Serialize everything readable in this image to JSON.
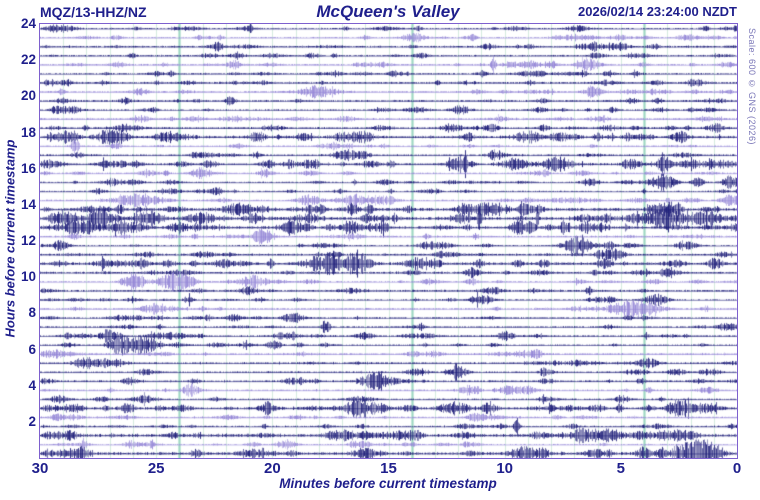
{
  "header": {
    "station": "MQZ/13-HHZ/NZ",
    "title": "McQueen's Valley",
    "timestamp": "2026/02/14 23:24:00 NZDT"
  },
  "side_note": "Scale: 600 © GNS (2026)",
  "axes": {
    "y_label": "Hours before current timestamp",
    "x_label": "Minutes before current timestamp",
    "x_ticks": [
      30,
      25,
      20,
      15,
      10,
      5,
      0
    ],
    "y_ticks": [
      24,
      22,
      20,
      18,
      16,
      14,
      12,
      10,
      8,
      6,
      4,
      2
    ]
  },
  "colors": {
    "trace_dark": "#1c1c78",
    "trace_light": "#9284d6",
    "grid_minor": "#d5ebdf",
    "grid_major": "#9fd8c3",
    "border": "#7e60ce",
    "text": "#1f1f8c",
    "note": "#7a77b8",
    "background": "#ffffff"
  },
  "chart_data": {
    "type": "helicorder",
    "station": "MQZ/13-HHZ/NZ",
    "title": "McQueen's Valley",
    "current_timestamp": "2026/02/14 23:24:00 NZDT",
    "scale": 600,
    "rows": 48,
    "minutes_per_row": 30,
    "x_range_minutes_before": [
      30,
      0
    ],
    "y_range_hours_before": [
      0,
      24
    ],
    "grid": {
      "minor_every_min": 1,
      "major_at_minutes_before": [
        24,
        14,
        4
      ]
    },
    "seed": 1402,
    "light_rows": [
      1,
      4,
      7,
      10,
      13,
      16,
      19,
      23,
      28,
      31,
      36,
      40,
      43,
      46
    ],
    "busy_rows": [
      12,
      15,
      20,
      21,
      22,
      26,
      42,
      45,
      47
    ],
    "event_fields": [
      "row_index_from_top",
      "minutes_before",
      "amplitude_px",
      "width_minutes"
    ],
    "events": [
      [
        1,
        7.0,
        3,
        1.2
      ],
      [
        1,
        14.0,
        2.5,
        0.8
      ],
      [
        2,
        21.0,
        2.5,
        0.5
      ],
      [
        3,
        21.5,
        4,
        0.5
      ],
      [
        3,
        13.6,
        3,
        0.5
      ],
      [
        4,
        10.5,
        8,
        0.2
      ],
      [
        4,
        8.0,
        4,
        0.5
      ],
      [
        4,
        6.4,
        7,
        0.8
      ],
      [
        4,
        0.5,
        3,
        0.6
      ],
      [
        5,
        11.0,
        2,
        0.5
      ],
      [
        7,
        25.7,
        3,
        0.8
      ],
      [
        7,
        18.0,
        5,
        1.6
      ],
      [
        7,
        6.2,
        3,
        0.8
      ],
      [
        7,
        3.6,
        2.5,
        0.7
      ],
      [
        8,
        4.6,
        2.5,
        0.5
      ],
      [
        9,
        28.7,
        4,
        0.8
      ],
      [
        11,
        0.8,
        3,
        0.6
      ],
      [
        11,
        26.2,
        4,
        0.9
      ],
      [
        12,
        28.9,
        5,
        0.7
      ],
      [
        12,
        27.0,
        4,
        1.2
      ],
      [
        12,
        24.5,
        4,
        1.0
      ],
      [
        13,
        28.5,
        8,
        0.3
      ],
      [
        14,
        16.9,
        5,
        0.9
      ],
      [
        15,
        12.1,
        5,
        0.8
      ],
      [
        15,
        9.6,
        6,
        1.0
      ],
      [
        15,
        7.7,
        7,
        1.3
      ],
      [
        15,
        3.2,
        9,
        0.35
      ],
      [
        15,
        0.7,
        4,
        1.4
      ],
      [
        16,
        23.0,
        4,
        1.0
      ],
      [
        17,
        3.3,
        8,
        0.9
      ],
      [
        17,
        1.7,
        4,
        0.5
      ],
      [
        17,
        0.3,
        6,
        0.7
      ],
      [
        19,
        26.0,
        6,
        1.5
      ],
      [
        19,
        18.5,
        5,
        0.8
      ],
      [
        19,
        16.4,
        6,
        1.4
      ],
      [
        19,
        15.0,
        4,
        0.7
      ],
      [
        19,
        7.5,
        2.5,
        1.5
      ],
      [
        19,
        1.9,
        3,
        0.5
      ],
      [
        19,
        0.25,
        6,
        0.8
      ],
      [
        20,
        21.5,
        6,
        1.2
      ],
      [
        20,
        11.0,
        4,
        0.9
      ],
      [
        21,
        28.8,
        5,
        0.7
      ],
      [
        21,
        27.5,
        6,
        0.9
      ],
      [
        21,
        25.5,
        5,
        1.1
      ],
      [
        21,
        23.3,
        5,
        0.8
      ],
      [
        21,
        18.5,
        4,
        1.0
      ],
      [
        21,
        11.1,
        13,
        0.15
      ],
      [
        21,
        8.6,
        12,
        0.12
      ],
      [
        21,
        3.1,
        7,
        0.8
      ],
      [
        21,
        1.7,
        5,
        1.2
      ],
      [
        22,
        28.5,
        5,
        0.9
      ],
      [
        22,
        26.0,
        5,
        1.0
      ],
      [
        22,
        24.0,
        4,
        0.8
      ],
      [
        22,
        9.3,
        3,
        0.5
      ],
      [
        23,
        20.6,
        7,
        0.4
      ],
      [
        23,
        20.2,
        6,
        0.3
      ],
      [
        24,
        6.8,
        7,
        1.2
      ],
      [
        25,
        5.5,
        3,
        0.6
      ],
      [
        26,
        17.4,
        7,
        0.8
      ],
      [
        26,
        16.3,
        8,
        0.9
      ],
      [
        27,
        14.0,
        3,
        0.6
      ],
      [
        28,
        25.9,
        7,
        0.7
      ],
      [
        28,
        24.2,
        9,
        1.4
      ],
      [
        28,
        20.8,
        7,
        1.0
      ],
      [
        29,
        10.5,
        4,
        0.7
      ],
      [
        30,
        11.0,
        6,
        0.8
      ],
      [
        30,
        3.5,
        6,
        0.9
      ],
      [
        31,
        4.4,
        9,
        1.8
      ],
      [
        33,
        17.7,
        9,
        0.3
      ],
      [
        33,
        0.5,
        4,
        0.8
      ],
      [
        34,
        26.9,
        5,
        0.7
      ],
      [
        34,
        19.5,
        4,
        0.9
      ],
      [
        35,
        26.6,
        10,
        0.8
      ],
      [
        35,
        25.7,
        10,
        0.9
      ],
      [
        35,
        20.0,
        3,
        0.5
      ],
      [
        36,
        29.3,
        3,
        1.5
      ],
      [
        37,
        27.3,
        3,
        1.4
      ],
      [
        38,
        12.0,
        4,
        0.7
      ],
      [
        39,
        15.5,
        9,
        1.3
      ],
      [
        39,
        26.0,
        2.5,
        0.6
      ],
      [
        40,
        10.0,
        3,
        0.5
      ],
      [
        41,
        25.8,
        2.5,
        0.8
      ],
      [
        41,
        5.0,
        4,
        0.6
      ],
      [
        42,
        16.4,
        9,
        1.2
      ],
      [
        42,
        12.5,
        5,
        0.8
      ],
      [
        42,
        2.3,
        6,
        1.2
      ],
      [
        42,
        1.2,
        5,
        0.8
      ],
      [
        43,
        19.0,
        3,
        0.6
      ],
      [
        44,
        9.5,
        9,
        0.25
      ],
      [
        44,
        10.2,
        3,
        0.5
      ],
      [
        45,
        29.8,
        3,
        0.4
      ],
      [
        45,
        6.7,
        5,
        0.8
      ],
      [
        45,
        3.2,
        4,
        0.6
      ],
      [
        46,
        26.0,
        2,
        0.8
      ],
      [
        47,
        29.7,
        3,
        0.3
      ],
      [
        47,
        21.2,
        3,
        0.2
      ],
      [
        47,
        9.2,
        7,
        1.0
      ],
      [
        47,
        2.0,
        8,
        1.1
      ],
      [
        47,
        1.3,
        6,
        0.7
      ]
    ]
  }
}
